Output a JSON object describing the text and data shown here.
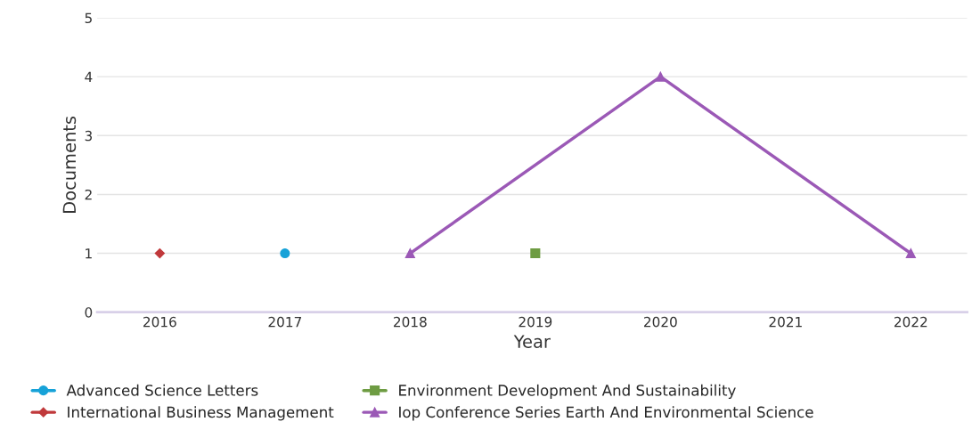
{
  "chart_data": {
    "type": "line",
    "xlabel": "Year",
    "ylabel": "Documents",
    "xlim": [
      2015.5,
      2022.45
    ],
    "xticks": [
      2016,
      2017,
      2018,
      2019,
      2020,
      2021,
      2022
    ],
    "ylim": [
      0,
      5
    ],
    "yticks": [
      0,
      1,
      2,
      3,
      4,
      5
    ],
    "grid": "y",
    "legend": "bottom",
    "series": [
      {
        "name": "Advanced Science Letters",
        "color": "#17a2d8",
        "marker": "circle",
        "x": [
          2017
        ],
        "values": [
          1
        ]
      },
      {
        "name": "International Business Management",
        "color": "#c0393b",
        "marker": "diamond",
        "x": [
          2016
        ],
        "values": [
          1
        ]
      },
      {
        "name": "Environment Development And Sustainability",
        "color": "#6e9c43",
        "marker": "square",
        "x": [
          2019
        ],
        "values": [
          1
        ]
      },
      {
        "name": "Iop Conference Series Earth And Environmental Science",
        "color": "#9b59b6",
        "marker": "triangle",
        "x": [
          2018,
          2020,
          2022
        ],
        "values": [
          1,
          4,
          1
        ]
      }
    ]
  }
}
